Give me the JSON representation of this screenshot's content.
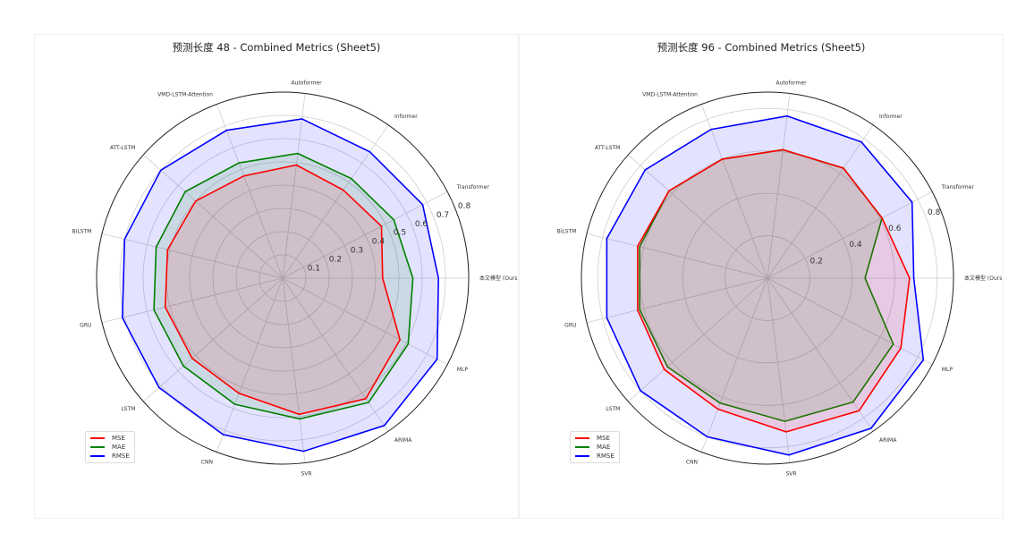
{
  "legend": [
    "MSE",
    "MAE",
    "RMSE"
  ],
  "colors": {
    "MSE": "#ff0000",
    "MAE": "#008000",
    "RMSE": "#0000ff",
    "fill_rmse": "#e3e3fb"
  },
  "chart_data": [
    {
      "type": "radar",
      "title": "预测长度 48 - Combined Metrics (Sheet5)",
      "axes": [
        "本文模型 (Ours)",
        "Transformer",
        "Informer",
        "Autoformer",
        "VMD-LSTM-Attention",
        "ATT-LSTM",
        "BiLSTM",
        "GRU",
        "LSTM",
        "CNN",
        "SVR",
        "ARIMA",
        "MLP"
      ],
      "rticks": [
        0.1,
        0.2,
        0.3,
        0.4,
        0.5,
        0.6,
        0.7,
        0.8
      ],
      "rmax": 0.8,
      "series": [
        {
          "name": "MSE",
          "values": [
            0.43,
            0.48,
            0.46,
            0.49,
            0.47,
            0.5,
            0.51,
            0.52,
            0.52,
            0.53,
            0.59,
            0.63,
            0.57
          ]
        },
        {
          "name": "MAE",
          "values": [
            0.56,
            0.54,
            0.52,
            0.54,
            0.53,
            0.56,
            0.56,
            0.57,
            0.57,
            0.58,
            0.61,
            0.65,
            0.61
          ]
        },
        {
          "name": "RMSE",
          "values": [
            0.67,
            0.68,
            0.66,
            0.69,
            0.68,
            0.7,
            0.7,
            0.71,
            0.71,
            0.72,
            0.75,
            0.77,
            0.75
          ]
        }
      ],
      "legend_position": "lower-left"
    },
    {
      "type": "radar",
      "title": "预测长度 96 - Combined Metrics (Sheet5)",
      "axes": [
        "本文模型 (Ours)",
        "Transformer",
        "Informer",
        "Autoformer",
        "VMD-LSTM-Attention",
        "ATT-LSTM",
        "BiLSTM",
        "GRU",
        "LSTM",
        "CNN",
        "SVR",
        "ARIMA",
        "MLP"
      ],
      "rticks": [
        0.2,
        0.4,
        0.6,
        0.8
      ],
      "rmax": 0.877,
      "series": [
        {
          "name": "MSE",
          "values": [
            0.67,
            0.61,
            0.63,
            0.61,
            0.6,
            0.62,
            0.63,
            0.63,
            0.65,
            0.66,
            0.73,
            0.76,
            0.71
          ]
        },
        {
          "name": "MAE",
          "values": [
            0.46,
            0.61,
            0.63,
            0.61,
            0.6,
            0.62,
            0.62,
            0.62,
            0.63,
            0.63,
            0.68,
            0.71,
            0.67
          ]
        },
        {
          "name": "RMSE",
          "values": [
            0.69,
            0.77,
            0.78,
            0.77,
            0.75,
            0.77,
            0.78,
            0.78,
            0.8,
            0.8,
            0.84,
            0.86,
            0.83
          ]
        }
      ],
      "legend_position": "lower-left"
    }
  ]
}
